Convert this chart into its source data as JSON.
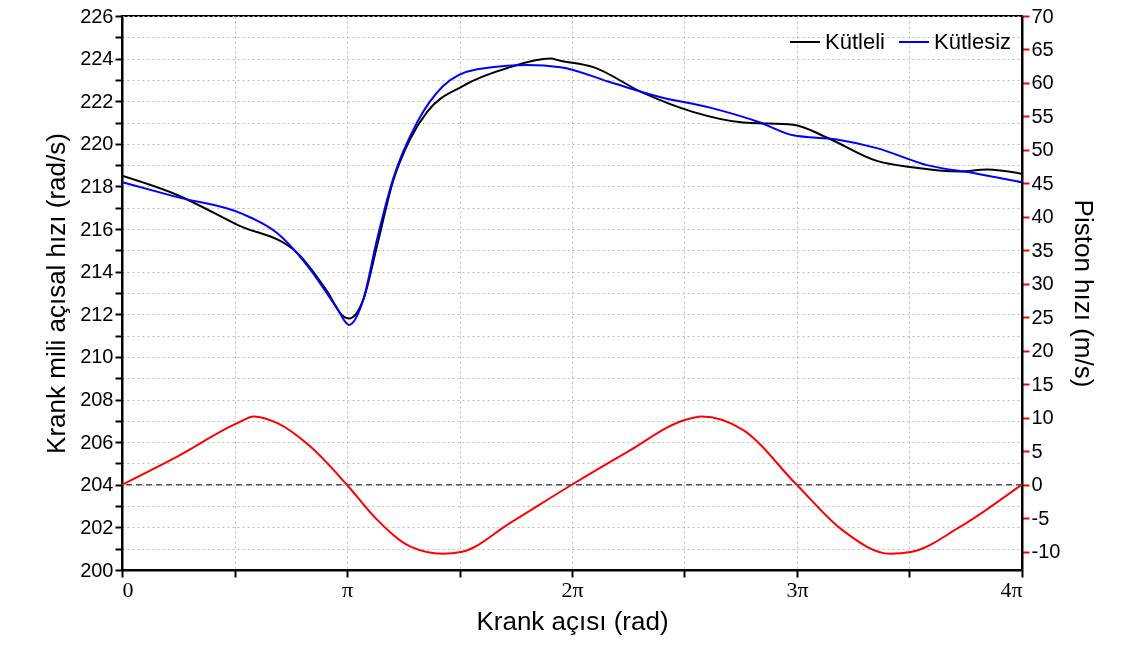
{
  "chart_data": {
    "type": "line",
    "xlabel": "Krank açısı (rad)",
    "ylabel": "Krank mili açısal hızı (rad/s)",
    "y2label": "Piston hızı (m/s)",
    "xlim": [
      0,
      12.56637
    ],
    "xticks": [
      0,
      {
        "value": 1.5708,
        "label": null
      },
      {
        "value": 3.14159,
        "label": "π"
      },
      {
        "value": 4.71239,
        "label": null
      },
      {
        "value": 6.28319,
        "label": "2π"
      },
      {
        "value": 7.85398,
        "label": null
      },
      {
        "value": 9.42478,
        "label": "3π"
      },
      {
        "value": 10.99557,
        "label": null
      },
      {
        "value": 12.56637,
        "label": "4π"
      }
    ],
    "ylim": [
      200,
      226
    ],
    "yticks": [
      200,
      {
        "value": 201,
        "label": null
      },
      202,
      {
        "value": 203,
        "label": null
      },
      204,
      {
        "value": 205,
        "label": null
      },
      206,
      {
        "value": 207,
        "label": null
      },
      208,
      {
        "value": 209,
        "label": null
      },
      210,
      {
        "value": 211,
        "label": null
      },
      212,
      {
        "value": 213,
        "label": null
      },
      214,
      {
        "value": 215,
        "label": null
      },
      216,
      {
        "value": 217,
        "label": null
      },
      218,
      {
        "value": 219,
        "label": null
      },
      220,
      {
        "value": 221,
        "label": null
      },
      222,
      {
        "value": 223,
        "label": null
      },
      224,
      {
        "value": 225,
        "label": null
      },
      226
    ],
    "y2lim": [
      -12.73,
      70
    ],
    "y2ticks": [
      -10,
      -5,
      0,
      5,
      10,
      15,
      20,
      25,
      30,
      35,
      40,
      45,
      50,
      55,
      60,
      65,
      70
    ],
    "grid": true,
    "legend": "top right",
    "line_style": "solid",
    "marker": "none",
    "ref_lines": [
      {
        "axis": "y2",
        "value": 0,
        "label": null,
        "color": "#555555",
        "line_style": "dashed"
      }
    ],
    "series": [
      {
        "name": "Kütleli",
        "color": "#000000",
        "x": [
          0,
          0.77,
          1.61,
          2.44,
          2.86,
          3.09,
          3.17,
          3.37,
          3.56,
          3.78,
          4.02,
          4.26,
          4.75,
          5.42,
          5.98,
          6.12,
          6.58,
          7.27,
          7.97,
          8.67,
          9.37,
          9.84,
          10.54,
          11.03,
          11.7,
          12.08,
          12.56
        ],
        "values": [
          218.5,
          217.6,
          216.2,
          214.9,
          213.1,
          211.9,
          211.8,
          212.7,
          215.2,
          218.2,
          220.2,
          221.5,
          222.7,
          223.6,
          224.0,
          223.9,
          223.6,
          222.4,
          221.5,
          221.0,
          220.9,
          220.3,
          219.2,
          218.9,
          218.7,
          218.8,
          218.6
        ]
      },
      {
        "name": "Kütlesiz",
        "color": "#0000ff",
        "x": [
          0,
          0.77,
          1.69,
          2.17,
          2.63,
          3.0,
          3.17,
          3.37,
          3.56,
          3.78,
          4.12,
          4.48,
          4.96,
          5.66,
          6.12,
          6.81,
          7.51,
          8.21,
          8.91,
          9.37,
          9.98,
          10.54,
          11.24,
          11.94,
          12.56
        ],
        "values": [
          218.2,
          217.5,
          216.7,
          215.8,
          214.1,
          212.3,
          211.5,
          212.7,
          215.5,
          218.3,
          221.0,
          222.7,
          223.5,
          223.7,
          223.6,
          222.9,
          222.2,
          221.7,
          221.0,
          220.4,
          220.2,
          219.8,
          219.0,
          218.6,
          218.2
        ]
      },
      {
        "color": "#ff0000",
        "axis": "y2",
        "x": [
          0,
          0.77,
          1.61,
          1.84,
          2.17,
          2.63,
          3.14,
          3.56,
          4.02,
          4.48,
          4.75,
          5.42,
          6.28,
          7.04,
          7.87,
          8.09,
          8.67,
          9.42,
          10.05,
          10.73,
          11.03,
          11.7,
          12.56
        ],
        "values": [
          0,
          4.2,
          9.2,
          10.2,
          9.2,
          5.7,
          0,
          -5.2,
          -9.2,
          -10.3,
          -10,
          -5.7,
          0,
          4.8,
          9.7,
          10.2,
          8.2,
          0,
          -6.7,
          -10.3,
          -10,
          -6.3,
          0
        ]
      }
    ]
  }
}
